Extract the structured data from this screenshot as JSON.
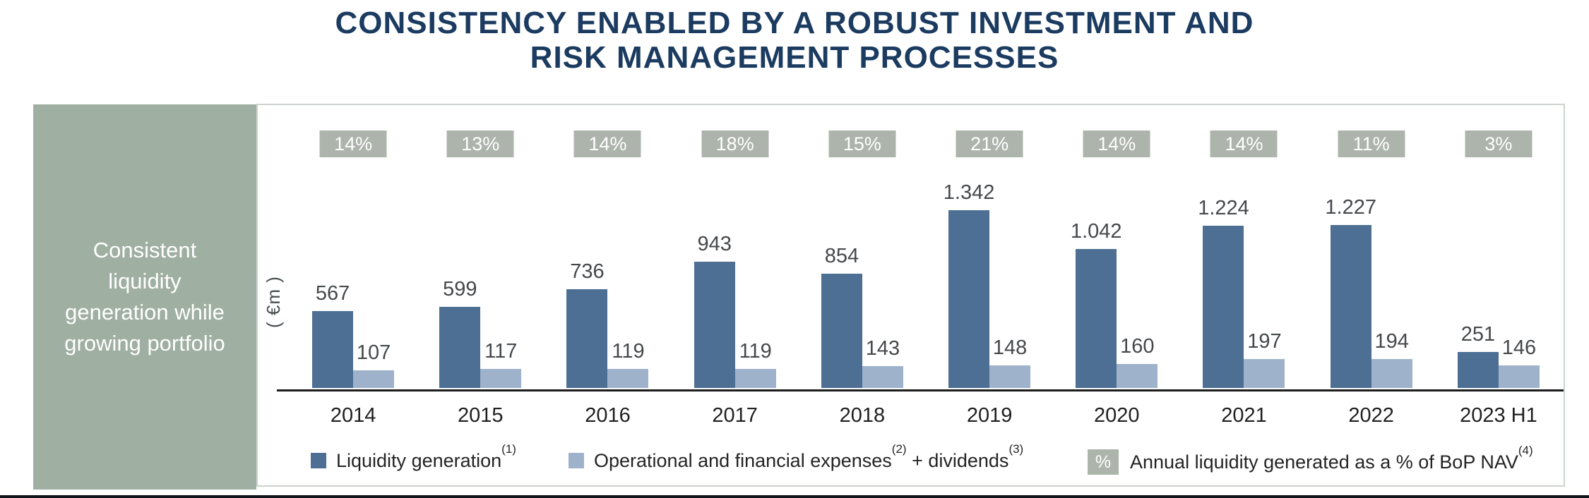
{
  "title": {
    "line1": "CONSISTENCY ENABLED BY A ROBUST INVESTMENT AND",
    "line2": "RISK MANAGEMENT PROCESSES"
  },
  "sidebar": {
    "text": "Consistent liquidity generation while growing portfolio"
  },
  "chart_data": {
    "type": "bar",
    "ylabel": "( €m )",
    "unit": "€m",
    "categories": [
      "2014",
      "2015",
      "2016",
      "2017",
      "2018",
      "2019",
      "2020",
      "2021",
      "2022",
      "2023 H1"
    ],
    "series": [
      {
        "name": "Liquidity generation",
        "color": "#4c6f93",
        "values": [
          567,
          599,
          736,
          943,
          854,
          1342,
          1042,
          1224,
          1227,
          251
        ],
        "labels": [
          "567",
          "599",
          "736",
          "943",
          "854",
          "1.342",
          "1.042",
          "1.224",
          "1.227",
          "251"
        ]
      },
      {
        "name": "Operational and financial expenses + dividends",
        "color": "#9fb2cc",
        "values": [
          107,
          117,
          119,
          119,
          143,
          148,
          160,
          197,
          194,
          146
        ],
        "labels": [
          "107",
          "117",
          "119",
          "119",
          "143",
          "148",
          "160",
          "197",
          "194",
          "146"
        ]
      }
    ],
    "badge_series": {
      "name": "Annual liquidity generated as a % of BoP NAV",
      "color": "#adb4ac",
      "values": [
        "14%",
        "13%",
        "14%",
        "18%",
        "15%",
        "21%",
        "14%",
        "14%",
        "11%",
        "3%"
      ]
    },
    "ylim": [
      0,
      1400
    ],
    "grid": false,
    "legend_position": "bottom"
  },
  "legend": {
    "item1": {
      "text1": "Liquidity generation",
      "sup1": "(1)",
      "text2": "",
      "sup2": ""
    },
    "item2": {
      "text1": "Operational and financial expenses",
      "sup1": "(2)",
      "text2": " + dividends",
      "sup2": "(3)"
    },
    "item3": {
      "icon": "%",
      "text1": "Annual liquidity generated as a % of BoP NAV",
      "sup1": "(4)",
      "text2": "",
      "sup2": ""
    }
  },
  "colors": {
    "title": "#1b3b60",
    "sidebar_bg": "#9fafa1",
    "bar_dark": "#4c6f93",
    "bar_light": "#9fb2cc",
    "badge_bg": "#adb4ac",
    "panel_border": "#ccd3cc",
    "axis": "#1c1c1c",
    "bottom_rule": "#10151c"
  }
}
